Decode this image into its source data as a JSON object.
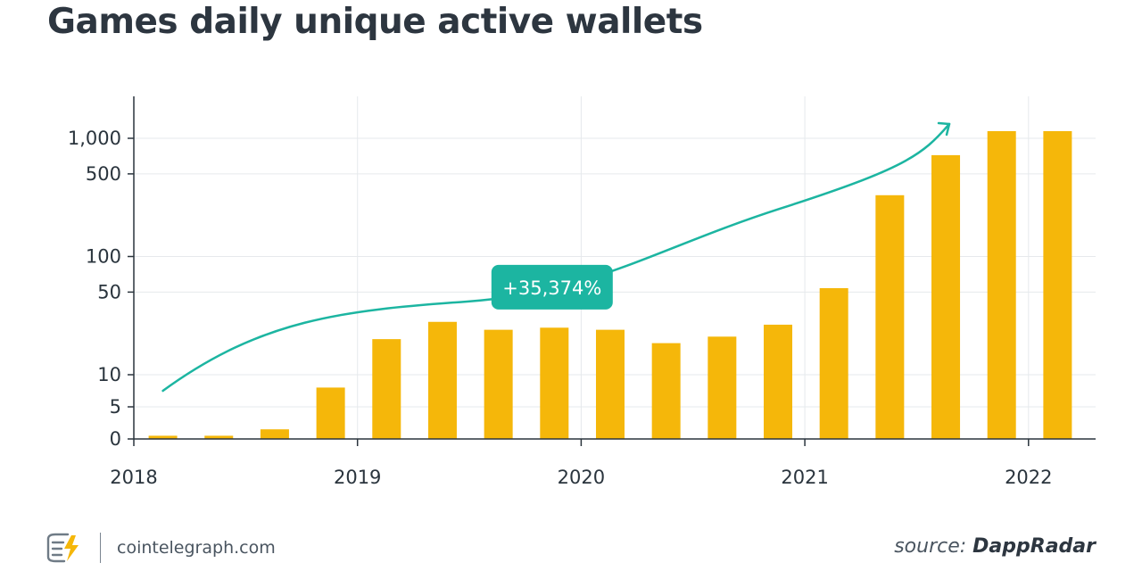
{
  "chart_data": {
    "type": "bar",
    "title": "Games daily unique active wallets",
    "y_scale": "log-like (0 to 10 linear, log above)",
    "ylim": [
      0,
      2000
    ],
    "yticks": [
      {
        "value": 0,
        "label": "0"
      },
      {
        "value": 5,
        "label": "5"
      },
      {
        "value": 10,
        "label": "10"
      },
      {
        "value": 50,
        "label": "50"
      },
      {
        "value": 100,
        "label": "100"
      },
      {
        "value": 500,
        "label": "500"
      },
      {
        "value": 1000,
        "label": "1,000"
      }
    ],
    "xticks": [
      {
        "value": 2018.0,
        "label": "2018"
      },
      {
        "value": 2019.0,
        "label": "2019"
      },
      {
        "value": 2020.0,
        "label": "2020"
      },
      {
        "value": 2021.0,
        "label": "2021"
      },
      {
        "value": 2022.0,
        "label": "2022"
      }
    ],
    "xlim": [
      2018.0,
      2022.3
    ],
    "series": [
      {
        "name": "Games daily unique active wallets",
        "color": "#F5B70A",
        "points": [
          {
            "x": 2018.13,
            "value": 0.5
          },
          {
            "x": 2018.38,
            "value": 0.5
          },
          {
            "x": 2018.63,
            "value": 1.5
          },
          {
            "x": 2018.88,
            "value": 8
          },
          {
            "x": 2019.13,
            "value": 20
          },
          {
            "x": 2019.38,
            "value": 28
          },
          {
            "x": 2019.63,
            "value": 24
          },
          {
            "x": 2019.88,
            "value": 25
          },
          {
            "x": 2020.13,
            "value": 24
          },
          {
            "x": 2020.38,
            "value": 18.5
          },
          {
            "x": 2020.63,
            "value": 21
          },
          {
            "x": 2020.88,
            "value": 26.5
          },
          {
            "x": 2021.13,
            "value": 54
          },
          {
            "x": 2021.38,
            "value": 330
          },
          {
            "x": 2021.63,
            "value": 720
          },
          {
            "x": 2021.88,
            "value": 1150
          },
          {
            "x": 2022.13,
            "value": 1150
          }
        ]
      }
    ],
    "annotation": {
      "label": "+35,374%",
      "color": "#1CB5A1",
      "trend_start": {
        "x": 2018.13,
        "value": 7.5
      },
      "trend_end": {
        "x": 2021.63,
        "value": 1150
      },
      "label_at": {
        "x": 2019.87,
        "value": 55
      }
    }
  },
  "footer": {
    "site": "cointelegraph.com",
    "source_prefix": "source: ",
    "source_name": "DappRadar"
  },
  "colors": {
    "bar": "#F5B70A",
    "accent": "#1CB5A1",
    "axis": "#2a343d",
    "grid": "#e6e9ec"
  }
}
